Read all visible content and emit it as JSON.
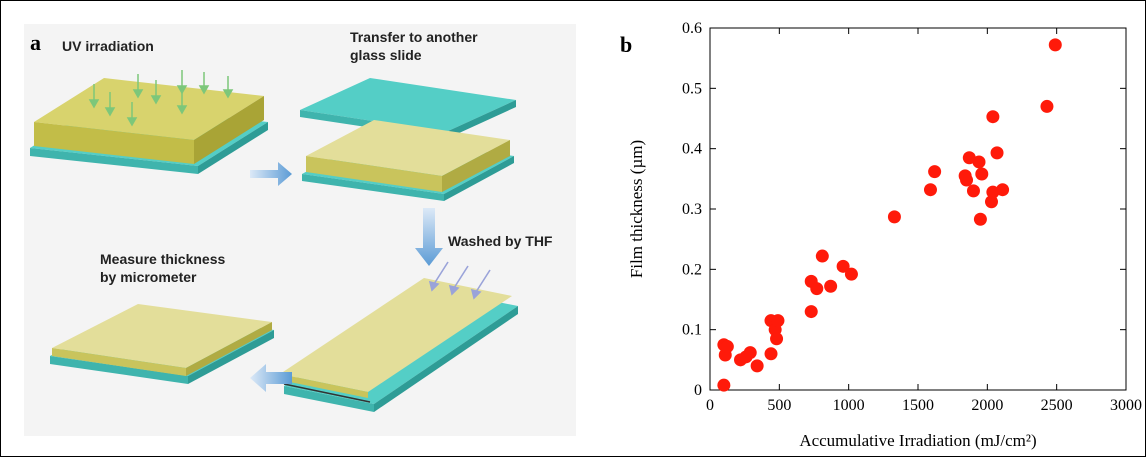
{
  "panel_a": {
    "letter": "a",
    "steps": {
      "uv": "UV irradiation",
      "transfer_line1": "Transfer to another",
      "transfer_line2": "glass slide",
      "wash": "Washed by THF",
      "measure_line1": "Measure thickness",
      "measure_line2": "by micrometer"
    },
    "colors": {
      "film": "#c9c45c",
      "glass": "#54cec6",
      "arrow": "#5b9bd5"
    }
  },
  "panel_b": {
    "letter": "b",
    "xlabel": "Accumulative Irradiation (mJ/cm²)",
    "ylabel": "Film thickness (µm)"
  },
  "chart_data": {
    "type": "scatter",
    "title": "",
    "xlabel": "Accumulative Irradiation (mJ/cm²)",
    "ylabel": "Film thickness (µm)",
    "xlim": [
      0,
      3000
    ],
    "ylim": [
      0,
      0.6
    ],
    "xticks": [
      "0",
      "500",
      "1000",
      "1500",
      "2000",
      "2500",
      "3000"
    ],
    "yticks": [
      "0",
      "0.1",
      "0.2",
      "0.3",
      "0.4",
      "0.5",
      "0.6"
    ],
    "grid": false,
    "color": "#ff1a0a",
    "points": [
      [
        100,
        0.075
      ],
      [
        110,
        0.058
      ],
      [
        100,
        0.008
      ],
      [
        125,
        0.072
      ],
      [
        220,
        0.05
      ],
      [
        260,
        0.055
      ],
      [
        290,
        0.062
      ],
      [
        340,
        0.04
      ],
      [
        440,
        0.115
      ],
      [
        440,
        0.06
      ],
      [
        470,
        0.1
      ],
      [
        490,
        0.115
      ],
      [
        480,
        0.085
      ],
      [
        730,
        0.13
      ],
      [
        730,
        0.18
      ],
      [
        770,
        0.168
      ],
      [
        810,
        0.222
      ],
      [
        870,
        0.172
      ],
      [
        960,
        0.205
      ],
      [
        1020,
        0.192
      ],
      [
        1330,
        0.287
      ],
      [
        1590,
        0.332
      ],
      [
        1620,
        0.362
      ],
      [
        1840,
        0.355
      ],
      [
        1850,
        0.348
      ],
      [
        1870,
        0.385
      ],
      [
        1900,
        0.33
      ],
      [
        1940,
        0.378
      ],
      [
        1950,
        0.283
      ],
      [
        1960,
        0.358
      ],
      [
        2030,
        0.312
      ],
      [
        2040,
        0.453
      ],
      [
        2040,
        0.328
      ],
      [
        2070,
        0.393
      ],
      [
        2110,
        0.332
      ],
      [
        2430,
        0.47
      ],
      [
        2490,
        0.572
      ]
    ]
  }
}
